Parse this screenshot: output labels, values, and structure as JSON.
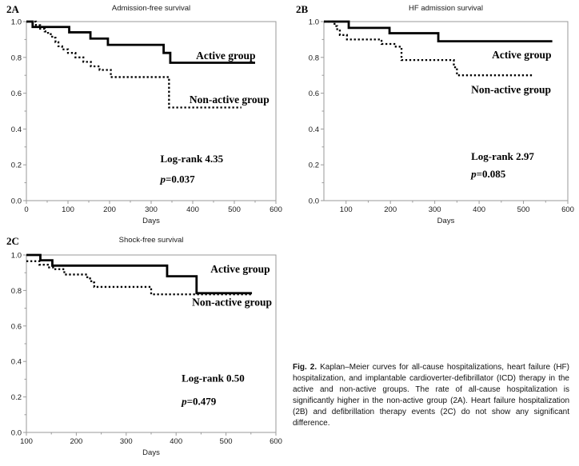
{
  "colors": {
    "curve": "#000000",
    "frame": "#9a9a9a",
    "tick_text": "#1a1a1a",
    "background": "#ffffff"
  },
  "caption": {
    "label": "Fig. 2.",
    "text": " Kaplan–Meier curves for all-cause hospitalizations, heart failure (HF) hospitalization, and implantable cardioverter-defibrillator (ICD) therapy in the active and non-active groups. The rate of all-cause hospitalization is significantly higher in the non-active group (2A). Heart failure hospitalization (2B) and defibrillation therapy events (2C) do not show any significant difference."
  },
  "chart_data": [
    {
      "type": "line",
      "step": true,
      "panel_label": "2A",
      "title": "Admission-free survival",
      "xlabel": "Days",
      "xlim": [
        0,
        600
      ],
      "ylim": [
        0.0,
        1.0
      ],
      "x_ticks": [
        0,
        100,
        200,
        300,
        400,
        500,
        600
      ],
      "y_tick_labels": [
        "0.0",
        "0.2",
        "0.4",
        "0.6",
        "0.8",
        "1.0"
      ],
      "x_minor_step": 50,
      "y_minor_step": 0.1,
      "series": [
        {
          "name": "Active group",
          "line_style": "solid",
          "points": [
            [
              0,
              1.0
            ],
            [
              15,
              0.97
            ],
            [
              103,
              0.94
            ],
            [
              154,
              0.905
            ],
            [
              196,
              0.87
            ],
            [
              330,
              0.825
            ],
            [
              346,
              0.77
            ],
            [
              550,
              0.77
            ]
          ]
        },
        {
          "name": "Non-active group",
          "line_style": "dotted",
          "points": [
            [
              0,
              1.0
            ],
            [
              23,
              0.98
            ],
            [
              33,
              0.96
            ],
            [
              44,
              0.945
            ],
            [
              52,
              0.93
            ],
            [
              62,
              0.91
            ],
            [
              70,
              0.885
            ],
            [
              77,
              0.862
            ],
            [
              86,
              0.845
            ],
            [
              100,
              0.825
            ],
            [
              118,
              0.8
            ],
            [
              137,
              0.775
            ],
            [
              155,
              0.75
            ],
            [
              176,
              0.73
            ],
            [
              203,
              0.69
            ],
            [
              343,
              0.52
            ],
            [
              517,
              0.52
            ]
          ]
        }
      ],
      "series_labels": [
        {
          "text": "Active group",
          "x": 408,
          "y": 0.79
        },
        {
          "text": "Non-active group",
          "x": 392,
          "y": 0.545
        }
      ],
      "stats": {
        "log_rank": "Log-rank 4.35",
        "p": "p=0.037",
        "x": 322,
        "y_log_rank": 0.215,
        "y_p": 0.1
      }
    },
    {
      "type": "line",
      "step": true,
      "panel_label": "2B",
      "title": "HF admission survival",
      "xlabel": "Days",
      "xlim": [
        50,
        600
      ],
      "ylim": [
        0.0,
        1.0
      ],
      "x_ticks": [
        100,
        200,
        300,
        400,
        500,
        600
      ],
      "y_tick_labels": [
        "0.0",
        "0.2",
        "0.4",
        "0.6",
        "0.8",
        "1.0"
      ],
      "x_minor_step": 50,
      "y_minor_step": 0.1,
      "series": [
        {
          "name": "Active group",
          "line_style": "solid",
          "points": [
            [
              50,
              1.0
            ],
            [
              106,
              0.965
            ],
            [
              198,
              0.935
            ],
            [
              308,
              0.89
            ],
            [
              565,
              0.89
            ]
          ]
        },
        {
          "name": "Non-active group",
          "line_style": "dotted",
          "points": [
            [
              50,
              1.0
            ],
            [
              74,
              0.975
            ],
            [
              80,
              0.95
            ],
            [
              86,
              0.925
            ],
            [
              102,
              0.9
            ],
            [
              180,
              0.875
            ],
            [
              212,
              0.86
            ],
            [
              225,
              0.785
            ],
            [
              343,
              0.745
            ],
            [
              350,
              0.7
            ],
            [
              520,
              0.7
            ]
          ]
        }
      ],
      "series_labels": [
        {
          "text": "Active group",
          "x": 429,
          "y": 0.795
        },
        {
          "text": "Non-active group",
          "x": 382,
          "y": 0.6
        }
      ],
      "stats": {
        "log_rank": "Log-rank 2.97",
        "p": "p=0.085",
        "x": 382,
        "y_log_rank": 0.228,
        "y_p": 0.129
      }
    },
    {
      "type": "line",
      "step": true,
      "panel_label": "2C",
      "title": "Shock-free survival",
      "xlabel": "Days",
      "xlim": [
        100,
        600
      ],
      "ylim": [
        0.0,
        1.0
      ],
      "x_ticks": [
        100,
        200,
        300,
        400,
        500,
        600
      ],
      "y_tick_labels": [
        "0.0",
        "0.2",
        "0.4",
        "0.6",
        "0.8",
        "1.0"
      ],
      "x_minor_step": 50,
      "y_minor_step": 0.1,
      "series": [
        {
          "name": "Active group",
          "line_style": "solid",
          "points": [
            [
              100,
              1.0
            ],
            [
              128,
              0.97
            ],
            [
              152,
              0.94
            ],
            [
              382,
              0.88
            ],
            [
              441,
              0.785
            ],
            [
              552,
              0.785
            ]
          ]
        },
        {
          "name": "Non-active group",
          "line_style": "dotted",
          "points": [
            [
              100,
              0.965
            ],
            [
              126,
              0.945
            ],
            [
              143,
              0.93
            ],
            [
              158,
              0.92
            ],
            [
              176,
              0.89
            ],
            [
              222,
              0.868
            ],
            [
              230,
              0.845
            ],
            [
              236,
              0.82
            ],
            [
              350,
              0.778
            ],
            [
              552,
              0.778
            ]
          ]
        }
      ],
      "series_labels": [
        {
          "text": "Active group",
          "x": 469,
          "y": 0.9
        },
        {
          "text": "Non-active group",
          "x": 432,
          "y": 0.715
        }
      ],
      "stats": {
        "log_rank": "Log-rank 0.50",
        "p": "p=0.479",
        "x": 411,
        "y_log_rank": 0.285,
        "y_p": 0.155
      }
    }
  ]
}
